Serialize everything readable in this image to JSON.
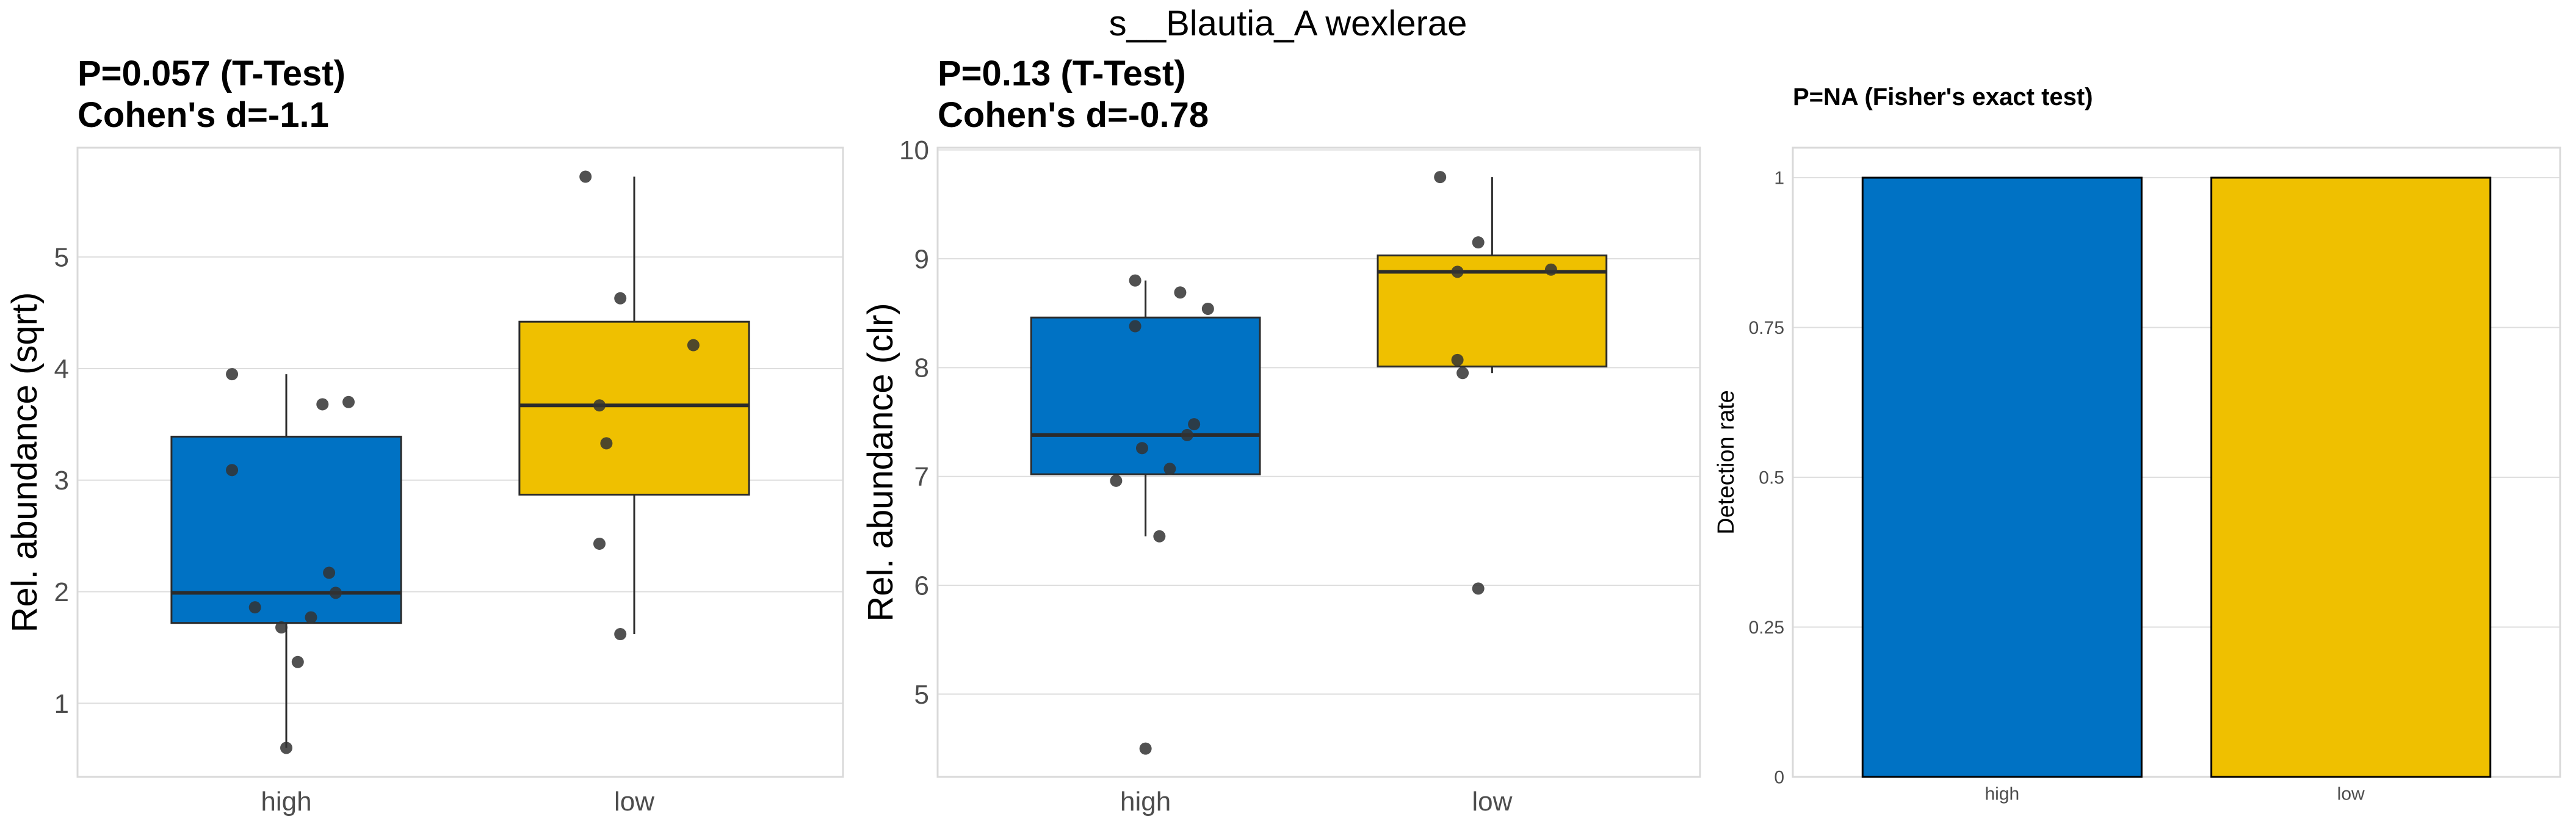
{
  "figure_title": "s__Blautia_A wexlerae",
  "colors": {
    "high": "#0072C4",
    "low": "#EFC000",
    "point": "#333333",
    "outline": "#2b2b2b"
  },
  "chart_data": [
    {
      "type": "box",
      "title_lines": [
        "P=0.057 (T-Test)",
        "Cohen's d=-1.1"
      ],
      "ylabel": "Rel. abundance (sqrt)",
      "xlabel": "",
      "categories": [
        "high",
        "low"
      ],
      "ylim": [
        0.34,
        5.98
      ],
      "yticks": [
        1,
        2,
        3,
        4,
        5
      ],
      "ytick_labels": [
        "1",
        "2",
        "3",
        "4",
        "5"
      ],
      "grid": true,
      "boxes": [
        {
          "group": "high",
          "q1": 1.72,
          "median": 1.99,
          "q3": 3.39,
          "whisker_low": 0.6,
          "whisker_high": 3.95
        },
        {
          "group": "low",
          "q1": 2.87,
          "median": 3.67,
          "q3": 4.42,
          "whisker_low": 1.62,
          "whisker_high": 5.72
        }
      ],
      "points": [
        {
          "group": "high",
          "values": [
            3.95,
            3.09,
            3.68,
            3.7,
            2.17,
            1.99,
            1.86,
            1.77,
            1.68,
            1.37,
            0.6
          ],
          "jitter": [
            -0.156,
            -0.156,
            0.104,
            0.179,
            0.123,
            0.142,
            -0.09,
            0.071,
            -0.014,
            0.033,
            0
          ]
        },
        {
          "group": "low",
          "values": [
            5.72,
            4.63,
            4.21,
            3.67,
            3.33,
            2.43,
            1.62
          ],
          "jitter": [
            -0.14,
            -0.04,
            0.17,
            -0.1,
            -0.08,
            -0.1,
            -0.04
          ]
        }
      ]
    },
    {
      "type": "box",
      "title_lines": [
        "P=0.13 (T-Test)",
        "Cohen's d=-0.78"
      ],
      "ylabel": "Rel. abundance (clr)",
      "xlabel": "",
      "categories": [
        "high",
        "low"
      ],
      "ylim": [
        4.24,
        10.02
      ],
      "yticks": [
        5,
        6,
        7,
        8,
        9,
        10
      ],
      "ytick_labels": [
        "5",
        "6",
        "7",
        "8",
        "9",
        "10"
      ],
      "grid": true,
      "boxes": [
        {
          "group": "high",
          "q1": 7.02,
          "median": 7.38,
          "q3": 8.46,
          "whisker_low": 6.45,
          "whisker_high": 8.8
        },
        {
          "group": "low",
          "q1": 8.01,
          "median": 8.88,
          "q3": 9.03,
          "whisker_low": 7.95,
          "whisker_high": 9.75
        }
      ],
      "points": [
        {
          "group": "high",
          "values": [
            8.8,
            8.38,
            8.69,
            8.54,
            7.48,
            7.38,
            7.26,
            7.07,
            6.96,
            6.45,
            4.5
          ],
          "jitter": [
            -0.03,
            -0.03,
            0.1,
            0.18,
            0.14,
            0.12,
            -0.01,
            0.07,
            -0.085,
            0.04,
            0
          ]
        },
        {
          "group": "low",
          "values": [
            9.75,
            9.15,
            8.88,
            8.9,
            8.07,
            7.95,
            5.97
          ],
          "jitter": [
            -0.15,
            -0.04,
            -0.1,
            0.17,
            -0.1,
            -0.085,
            -0.04
          ]
        }
      ]
    },
    {
      "type": "bar",
      "title_lines": [
        "P=NA (Fisher's exact test)"
      ],
      "ylabel": "Detection rate",
      "xlabel": "",
      "categories": [
        "high",
        "low"
      ],
      "values": [
        1,
        1
      ],
      "ylim": [
        0,
        1.05
      ],
      "yticks": [
        0,
        0.25,
        0.5,
        0.75,
        1
      ],
      "ytick_labels": [
        "0",
        "0.25",
        "0.5",
        "0.75",
        "1"
      ],
      "grid": true
    }
  ]
}
